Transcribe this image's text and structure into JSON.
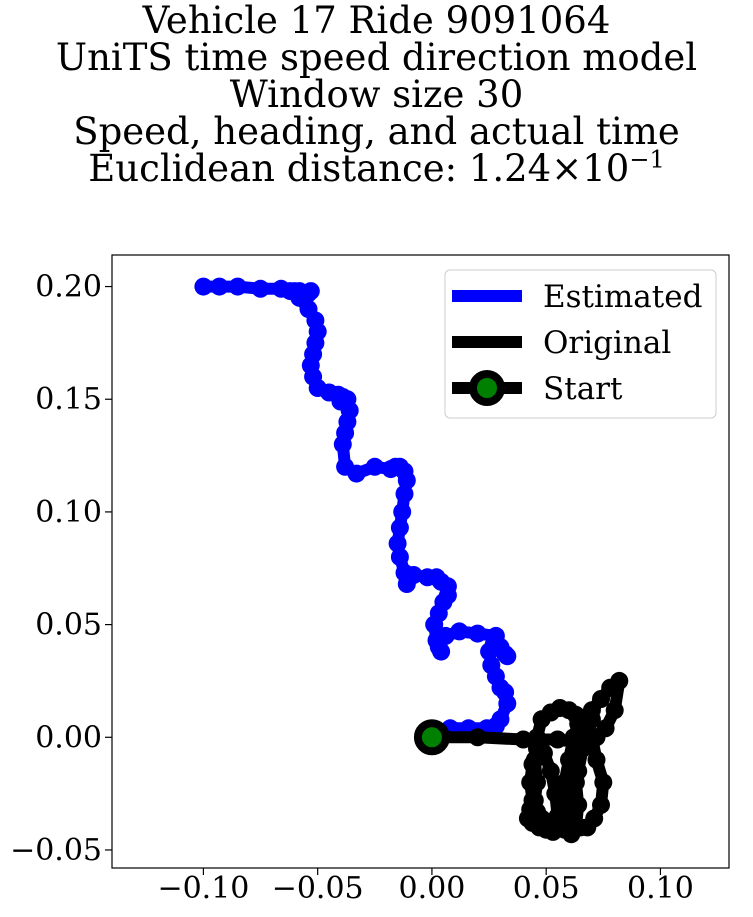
{
  "chart_data": {
    "type": "line",
    "title_lines": [
      "Vehicle 17 Ride 9091064",
      "UniTS time speed direction model",
      "Window size 30",
      "Speed, heading, and actual time"
    ],
    "title_metric_prefix": "Euclidean distance: 1.24",
    "title_metric_times": "×",
    "title_metric_base": "10",
    "title_metric_exponent": "−1",
    "xlabel": "",
    "ylabel": "",
    "xlim": [
      -0.14,
      0.13
    ],
    "ylim": [
      -0.058,
      0.214
    ],
    "xticks": [
      -0.1,
      -0.05,
      0.0,
      0.05,
      0.1
    ],
    "xtick_labels": [
      "−0.10",
      "−0.05",
      "0.00",
      "0.05",
      "0.10"
    ],
    "yticks": [
      -0.05,
      0.0,
      0.05,
      0.1,
      0.15,
      0.2
    ],
    "ytick_labels": [
      "−0.05",
      "0.00",
      "0.05",
      "0.10",
      "0.15",
      "0.20"
    ],
    "grid": false,
    "legend_position": "top-right",
    "series": [
      {
        "name": "Estimated",
        "color": "#0000ff",
        "x": [
          0.0,
          0.008,
          0.016,
          0.024,
          0.028,
          0.03,
          0.033,
          0.032,
          0.03,
          0.028,
          0.026,
          0.025,
          0.027,
          0.03,
          0.032,
          0.033,
          0.028,
          0.02,
          0.012,
          0.006,
          0.003,
          0.004,
          0.002,
          0.001,
          0.003,
          0.005,
          0.007,
          0.007,
          0.004,
          0.002,
          -0.002,
          -0.008,
          -0.011,
          -0.012,
          -0.014,
          -0.015,
          -0.014,
          -0.013,
          -0.012,
          -0.011,
          -0.012,
          -0.014,
          -0.016,
          -0.018,
          -0.025,
          -0.033,
          -0.038,
          -0.039,
          -0.038,
          -0.037,
          -0.036,
          -0.037,
          -0.039,
          -0.04,
          -0.041,
          -0.045,
          -0.05,
          -0.052,
          -0.053,
          -0.052,
          -0.051,
          -0.05,
          -0.051,
          -0.054,
          -0.058,
          -0.06,
          -0.057,
          -0.055,
          -0.054,
          -0.053,
          -0.055,
          -0.058,
          -0.062,
          -0.066,
          -0.075,
          -0.085,
          -0.093,
          -0.1
        ],
        "y": [
          0.003,
          0.004,
          0.004,
          0.004,
          0.005,
          0.008,
          0.015,
          0.02,
          0.022,
          0.027,
          0.032,
          0.038,
          0.041,
          0.04,
          0.037,
          0.036,
          0.045,
          0.046,
          0.047,
          0.045,
          0.04,
          0.038,
          0.043,
          0.05,
          0.055,
          0.06,
          0.063,
          0.067,
          0.069,
          0.071,
          0.071,
          0.072,
          0.068,
          0.073,
          0.08,
          0.086,
          0.093,
          0.1,
          0.108,
          0.114,
          0.118,
          0.12,
          0.12,
          0.119,
          0.12,
          0.117,
          0.12,
          0.13,
          0.135,
          0.14,
          0.145,
          0.15,
          0.151,
          0.149,
          0.152,
          0.153,
          0.155,
          0.16,
          0.165,
          0.17,
          0.175,
          0.18,
          0.185,
          0.19,
          0.195,
          0.198,
          0.197,
          0.196,
          0.197,
          0.198,
          0.197,
          0.198,
          0.198,
          0.199,
          0.199,
          0.2,
          0.2,
          0.2
        ]
      },
      {
        "name": "Original",
        "color": "#000000",
        "x": [
          0.0,
          0.02,
          0.04,
          0.055,
          0.062,
          0.065,
          0.068,
          0.072,
          0.076,
          0.08,
          0.082,
          0.078,
          0.074,
          0.07,
          0.068,
          0.07,
          0.072,
          0.075,
          0.074,
          0.071,
          0.068,
          0.065,
          0.062,
          0.06,
          0.058,
          0.06,
          0.062,
          0.064,
          0.063,
          0.06,
          0.056,
          0.052,
          0.048,
          0.046,
          0.045,
          0.046,
          0.045,
          0.043,
          0.042,
          0.044,
          0.047,
          0.05,
          0.053,
          0.056,
          0.058,
          0.06,
          0.062,
          0.065,
          0.068,
          0.07,
          0.068,
          0.066,
          0.064,
          0.062,
          0.06,
          0.058,
          0.056,
          0.055,
          0.054,
          0.052,
          0.049,
          0.046,
          0.044,
          0.043,
          0.044,
          0.046,
          0.048,
          0.05,
          0.052,
          0.055,
          0.058,
          0.061,
          0.063,
          0.064,
          0.063,
          0.062,
          0.063
        ],
        "y": [
          0.0,
          0.0,
          -0.001,
          -0.001,
          -0.002,
          -0.002,
          -0.002,
          0.0,
          0.004,
          0.012,
          0.025,
          0.022,
          0.017,
          0.012,
          0.008,
          0.0,
          -0.01,
          -0.02,
          -0.03,
          -0.036,
          -0.04,
          -0.04,
          -0.037,
          -0.03,
          -0.02,
          -0.01,
          0.0,
          0.006,
          0.01,
          0.012,
          0.013,
          0.011,
          0.008,
          0.0,
          -0.01,
          -0.02,
          -0.028,
          -0.032,
          -0.036,
          -0.038,
          -0.04,
          -0.041,
          -0.042,
          -0.04,
          -0.035,
          -0.02,
          -0.01,
          0.0,
          0.006,
          0.008,
          0.004,
          -0.005,
          -0.015,
          -0.025,
          -0.033,
          -0.037,
          -0.038,
          -0.035,
          -0.025,
          -0.015,
          -0.007,
          -0.005,
          -0.012,
          -0.02,
          -0.028,
          -0.033,
          -0.036,
          -0.038,
          -0.039,
          -0.04,
          -0.041,
          -0.043,
          -0.04,
          -0.03,
          -0.02,
          -0.01,
          0.0
        ]
      }
    ],
    "start": {
      "name": "Start",
      "x": 0.0,
      "y": 0.0,
      "edge_color": "#000000",
      "face_color": "#008000"
    },
    "legend_entries": [
      "Estimated",
      "Original",
      "Start"
    ]
  }
}
